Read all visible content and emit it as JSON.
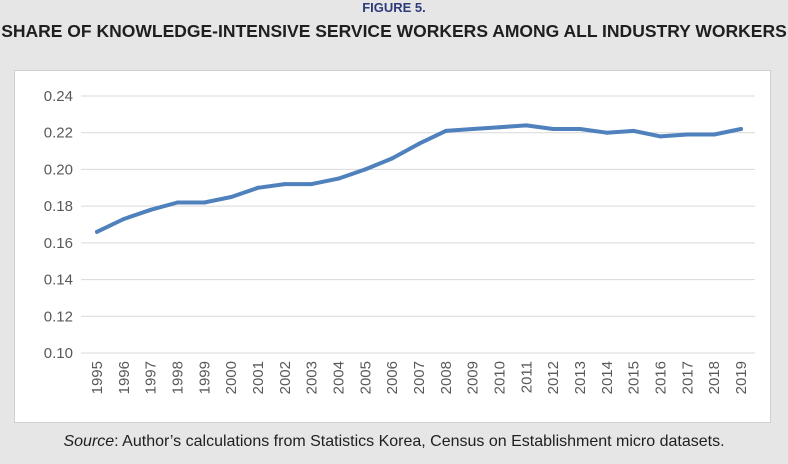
{
  "figure_label": "FIGURE 5.",
  "source": {
    "prefix": "Source",
    "text": ": Author’s calculations from Statistics Korea, Census on Establishment micro datasets."
  },
  "chart_data": {
    "type": "line",
    "title": "SHARE OF KNOWLEDGE-INTENSIVE SERVICE WORKERS AMONG ALL INDUSTRY WORKERS",
    "xlabel": "",
    "ylabel": "",
    "ylim": [
      0.1,
      0.24
    ],
    "yticks": [
      "0.10",
      "0.12",
      "0.14",
      "0.16",
      "0.18",
      "0.20",
      "0.22",
      "0.24"
    ],
    "grid": true,
    "line_color": "#4f81bd",
    "categories": [
      "1995",
      "1996",
      "1997",
      "1998",
      "1999",
      "2000",
      "2001",
      "2002",
      "2003",
      "2004",
      "2005",
      "2006",
      "2007",
      "2008",
      "2009",
      "2010",
      "2011",
      "2012",
      "2013",
      "2014",
      "2015",
      "2016",
      "2017",
      "2018",
      "2019"
    ],
    "series": [
      {
        "values": [
          0.166,
          0.173,
          0.178,
          0.182,
          0.182,
          0.185,
          0.19,
          0.192,
          0.192,
          0.195,
          0.2,
          0.206,
          0.214,
          0.221,
          0.222,
          0.223,
          0.224,
          0.222,
          0.222,
          0.22,
          0.221,
          0.218,
          0.219,
          0.219,
          0.222
        ]
      }
    ]
  }
}
